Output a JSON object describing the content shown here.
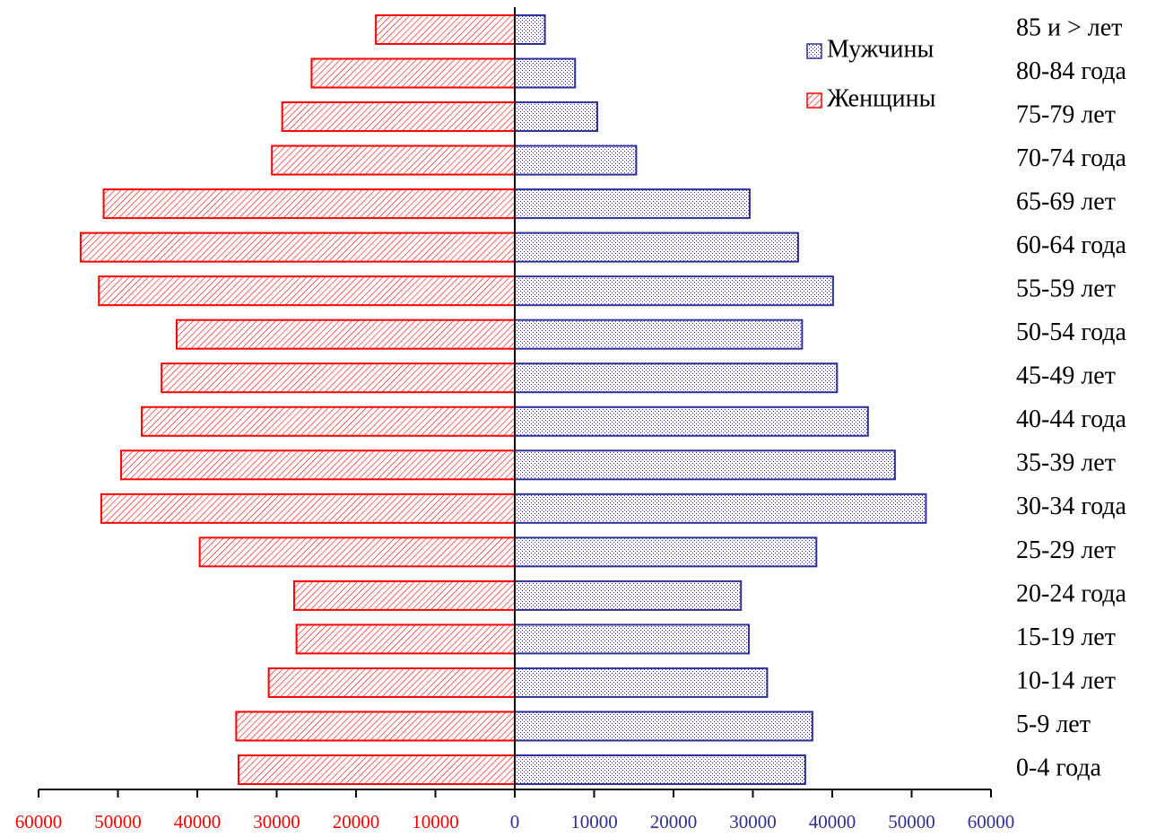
{
  "chart_data": {
    "type": "population-pyramid",
    "categories": [
      "0-4 года",
      "5-9 лет",
      "10-14 лет",
      "15-19 лет",
      "20-24 года",
      "25-29 лет",
      "30-34 года",
      "35-39 лет",
      "40-44 года",
      "45-49 лет",
      "50-54 года",
      "55-59 лет",
      "60-64 года",
      "65-69 лет",
      "70-74 года",
      "75-79 лет",
      "80-84 года",
      "85 и > лет"
    ],
    "series": [
      {
        "name": "Мужчины",
        "color": "#2e3192",
        "values": [
          36600,
          37500,
          31800,
          29500,
          28500,
          38000,
          51800,
          47900,
          44500,
          40600,
          36200,
          40100,
          35700,
          29600,
          15300,
          10400,
          7600,
          3800
        ]
      },
      {
        "name": "Женщины",
        "color": "#ff0000",
        "values": [
          -34800,
          -35100,
          -31000,
          -27500,
          -27800,
          -39700,
          -52100,
          -49600,
          -47000,
          -44500,
          -42600,
          -52400,
          -54700,
          -51800,
          -30600,
          -29300,
          -25600,
          -17500
        ]
      }
    ],
    "xlim": [
      -60000,
      60000
    ],
    "xticks": [
      {
        "value": -60000,
        "label": "60000"
      },
      {
        "value": -50000,
        "label": "50000"
      },
      {
        "value": -40000,
        "label": "40000"
      },
      {
        "value": -30000,
        "label": "30000"
      },
      {
        "value": -20000,
        "label": "20000"
      },
      {
        "value": -10000,
        "label": "10000"
      },
      0,
      10000,
      20000,
      30000,
      40000,
      50000,
      60000
    ],
    "legend": "upper right"
  }
}
